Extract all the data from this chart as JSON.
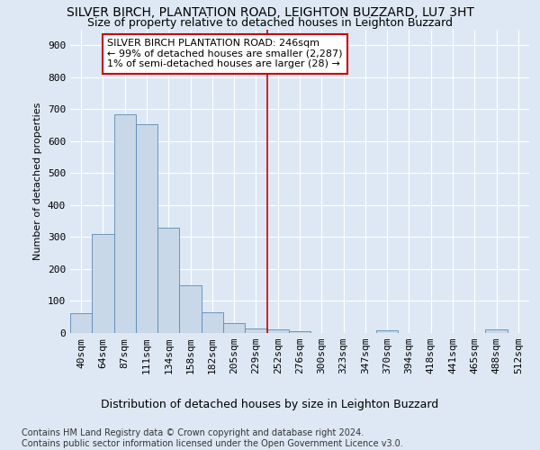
{
  "title": "SILVER BIRCH, PLANTATION ROAD, LEIGHTON BUZZARD, LU7 3HT",
  "subtitle": "Size of property relative to detached houses in Leighton Buzzard",
  "xlabel": "Distribution of detached houses by size in Leighton Buzzard",
  "ylabel": "Number of detached properties",
  "footnote": "Contains HM Land Registry data © Crown copyright and database right 2024.\nContains public sector information licensed under the Open Government Licence v3.0.",
  "bin_labels": [
    "40sqm",
    "64sqm",
    "87sqm",
    "111sqm",
    "134sqm",
    "158sqm",
    "182sqm",
    "205sqm",
    "229sqm",
    "252sqm",
    "276sqm",
    "300sqm",
    "323sqm",
    "347sqm",
    "370sqm",
    "394sqm",
    "418sqm",
    "441sqm",
    "465sqm",
    "488sqm",
    "512sqm"
  ],
  "bar_heights": [
    62,
    310,
    685,
    652,
    330,
    150,
    65,
    30,
    15,
    10,
    5,
    0,
    0,
    0,
    8,
    0,
    0,
    0,
    0,
    12,
    0
  ],
  "bar_color": "#c8d8e8",
  "bar_edge_color": "#5a8ab5",
  "vline_color": "#cc0000",
  "annotation_text_line1": "SILVER BIRCH PLANTATION ROAD: 246sqm",
  "annotation_text_line2": "← 99% of detached houses are smaller (2,287)",
  "annotation_text_line3": "1% of semi-detached houses are larger (28) →",
  "annotation_box_color": "#cc0000",
  "annotation_fill": "#ffffff",
  "ylim": [
    0,
    950
  ],
  "yticks": [
    0,
    100,
    200,
    300,
    400,
    500,
    600,
    700,
    800,
    900
  ],
  "background_color": "#dde8f4",
  "plot_background": "#dde8f4",
  "title_fontsize": 10,
  "subtitle_fontsize": 9,
  "xlabel_fontsize": 9,
  "ylabel_fontsize": 8,
  "tick_fontsize": 8,
  "annotation_fontsize": 8,
  "footnote_fontsize": 7,
  "grid_color": "#ffffff",
  "title_color": "#000000"
}
